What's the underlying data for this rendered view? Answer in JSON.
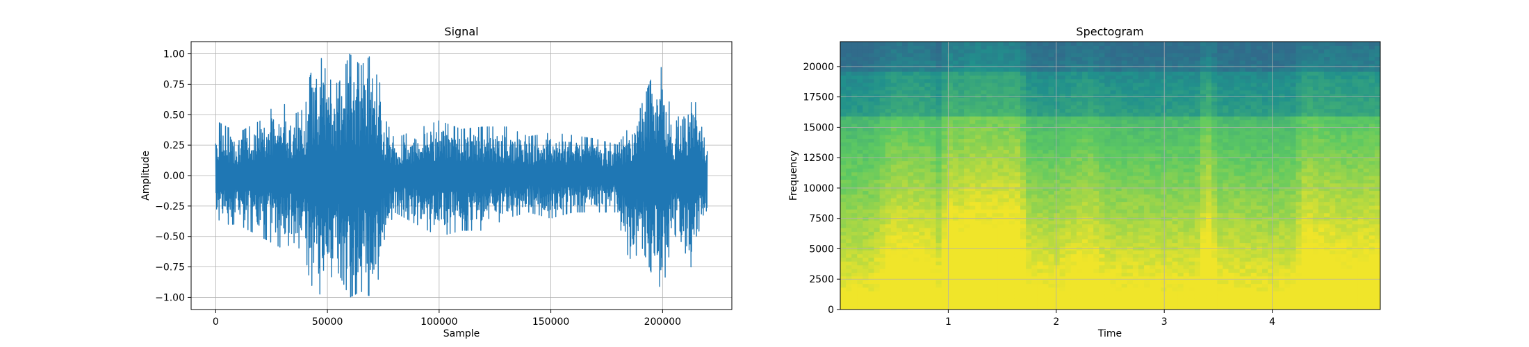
{
  "chart_data": [
    {
      "type": "line",
      "title": "Signal",
      "xlabel": "Sample",
      "ylabel": "Amplitude",
      "xlim": [
        -11000,
        231000
      ],
      "ylim": [
        -1.1,
        1.1
      ],
      "grid": true,
      "x_ticks": [
        {
          "value": 0,
          "label": "0"
        },
        {
          "value": 50000,
          "label": "50000"
        },
        {
          "value": 100000,
          "label": "100000"
        },
        {
          "value": 150000,
          "label": "150000"
        },
        {
          "value": 200000,
          "label": "200000"
        }
      ],
      "y_ticks": [
        {
          "value": 1.0,
          "label": "1.00"
        },
        {
          "value": 0.75,
          "label": "0.75"
        },
        {
          "value": 0.5,
          "label": "0.50"
        },
        {
          "value": 0.25,
          "label": "0.25"
        },
        {
          "value": 0.0,
          "label": "0.00"
        },
        {
          "value": -0.25,
          "label": "−0.25"
        },
        {
          "value": -0.5,
          "label": "−0.50"
        },
        {
          "value": -0.75,
          "label": "−0.75"
        },
        {
          "value": -1.0,
          "label": "−1.00"
        }
      ],
      "series_color": "#1f77b4",
      "series": [
        {
          "x": [
            0,
            5000,
            10000,
            15000,
            20000,
            25000,
            30000,
            35000,
            40000,
            42000,
            45000,
            48000,
            50000,
            55000,
            60000,
            65000,
            70000,
            72000,
            75000,
            80000,
            90000,
            100000,
            110000,
            120000,
            130000,
            140000,
            150000,
            160000,
            170000,
            180000,
            185000,
            190000,
            195000,
            200000,
            205000,
            210000,
            215000,
            220000
          ],
          "y_max": [
            0.45,
            0.4,
            0.35,
            0.4,
            0.45,
            0.55,
            0.6,
            0.5,
            0.55,
            0.8,
            1.0,
            0.95,
            0.8,
            0.75,
            1.0,
            0.9,
            1.0,
            1.0,
            0.5,
            0.3,
            0.38,
            0.45,
            0.38,
            0.4,
            0.4,
            0.32,
            0.35,
            0.33,
            0.3,
            0.25,
            0.4,
            0.55,
            0.8,
            0.9,
            0.4,
            0.6,
            0.6,
            0.2
          ],
          "y_min": [
            -0.35,
            -0.4,
            -0.4,
            -0.45,
            -0.5,
            -0.55,
            -0.6,
            -0.55,
            -0.65,
            -0.85,
            -1.0,
            -0.95,
            -0.85,
            -0.8,
            -1.0,
            -0.95,
            -1.0,
            -0.95,
            -0.55,
            -0.3,
            -0.4,
            -0.5,
            -0.45,
            -0.45,
            -0.35,
            -0.3,
            -0.35,
            -0.3,
            -0.3,
            -0.3,
            -0.85,
            -0.55,
            -0.8,
            -0.95,
            -0.45,
            -0.75,
            -0.75,
            -0.25
          ]
        }
      ]
    },
    {
      "type": "heatmap",
      "title": "Spectogram",
      "xlabel": "Time",
      "ylabel": "Frequency",
      "xlim": [
        0,
        5.0
      ],
      "ylim": [
        0,
        22050
      ],
      "grid": true,
      "colormap": "viridis",
      "x_ticks": [
        {
          "value": 1,
          "label": "1"
        },
        {
          "value": 2,
          "label": "2"
        },
        {
          "value": 3,
          "label": "3"
        },
        {
          "value": 4,
          "label": "4"
        }
      ],
      "y_ticks": [
        {
          "value": 0,
          "label": "0"
        },
        {
          "value": 2500,
          "label": "2500"
        },
        {
          "value": 5000,
          "label": "5000"
        },
        {
          "value": 7500,
          "label": "7500"
        },
        {
          "value": 10000,
          "label": "10000"
        },
        {
          "value": 12500,
          "label": "12500"
        },
        {
          "value": 15000,
          "label": "15000"
        },
        {
          "value": 17500,
          "label": "17500"
        },
        {
          "value": 20000,
          "label": "20000"
        }
      ],
      "energy_time": [
        0.0,
        0.3,
        0.45,
        0.5,
        0.6,
        0.85,
        0.9,
        1.0,
        1.1,
        1.2,
        1.5,
        1.65,
        1.75,
        2.0,
        2.1,
        2.3,
        2.5,
        2.7,
        3.0,
        3.3,
        3.4,
        3.5,
        3.7,
        4.0,
        4.2,
        4.3,
        4.5,
        4.7,
        5.0
      ],
      "energy": [
        0.2,
        0.25,
        0.55,
        0.6,
        0.6,
        0.55,
        0.25,
        0.9,
        0.75,
        0.9,
        0.85,
        0.9,
        0.35,
        0.3,
        0.4,
        0.55,
        0.3,
        0.3,
        0.3,
        0.3,
        0.85,
        0.3,
        0.3,
        0.25,
        0.3,
        0.7,
        0.6,
        0.5,
        0.6
      ]
    }
  ]
}
